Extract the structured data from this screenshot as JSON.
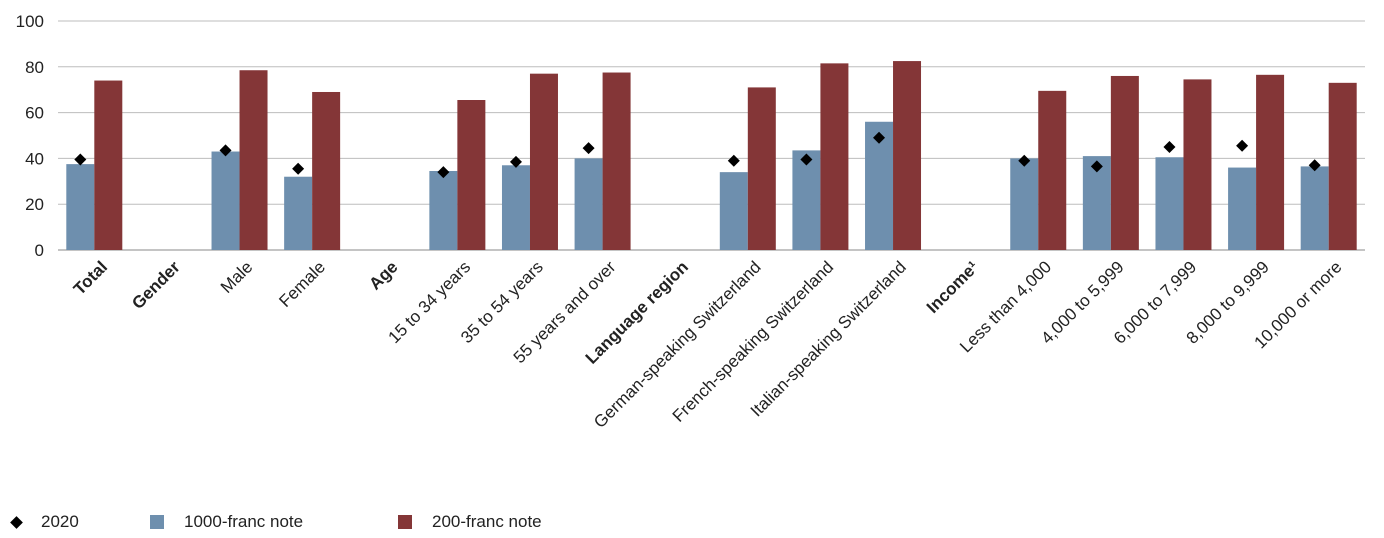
{
  "chart_data": {
    "type": "bar",
    "yticks": [
      "0",
      "20",
      "40",
      "60",
      "80",
      "100"
    ],
    "ylim": [
      0,
      100
    ],
    "grid": true,
    "legend_position": "bottom-left",
    "categories": [
      {
        "label": "Total",
        "bold": true,
        "note": 37.5,
        "note200": 74,
        "y2020": 39.5
      },
      {
        "label": "Gender",
        "bold": true,
        "note": null,
        "note200": null,
        "y2020": null
      },
      {
        "label": "Male",
        "bold": false,
        "note": 43,
        "note200": 78.5,
        "y2020": 43.5
      },
      {
        "label": "Female",
        "bold": false,
        "note": 32,
        "note200": 69,
        "y2020": 35.5
      },
      {
        "label": "Age",
        "bold": true,
        "note": null,
        "note200": null,
        "y2020": null
      },
      {
        "label": "15 to 34 years",
        "bold": false,
        "note": 34.5,
        "note200": 65.5,
        "y2020": 34
      },
      {
        "label": "35 to 54 years",
        "bold": false,
        "note": 37,
        "note200": 77,
        "y2020": 38.5
      },
      {
        "label": "55 years and over",
        "bold": false,
        "note": 40,
        "note200": 77.5,
        "y2020": 44.5
      },
      {
        "label": "Language region",
        "bold": true,
        "note": null,
        "note200": null,
        "y2020": null
      },
      {
        "label": "German-speaking Switzerland",
        "bold": false,
        "note": 34,
        "note200": 71,
        "y2020": 39
      },
      {
        "label": "French-speaking Switzerland",
        "bold": false,
        "note": 43.5,
        "note200": 81.5,
        "y2020": 39.5
      },
      {
        "label": "Italian-speaking Switzerland",
        "bold": false,
        "note": 56,
        "note200": 82.5,
        "y2020": 49
      },
      {
        "label": "Income¹",
        "bold": true,
        "note": null,
        "note200": null,
        "y2020": null
      },
      {
        "label": "Less than 4,000",
        "bold": false,
        "note": 40,
        "note200": 69.5,
        "y2020": 39
      },
      {
        "label": "4,000 to 5,999",
        "bold": false,
        "note": 41,
        "note200": 76,
        "y2020": 36.5
      },
      {
        "label": "6,000 to 7,999",
        "bold": false,
        "note": 40.5,
        "note200": 74.5,
        "y2020": 45
      },
      {
        "label": "8,000 to 9,999",
        "bold": false,
        "note": 36,
        "note200": 76.5,
        "y2020": 45.5
      },
      {
        "label": "10,000 or more",
        "bold": false,
        "note": 36.5,
        "note200": 73,
        "y2020": 37
      }
    ],
    "series": [
      {
        "name": "1000-franc note",
        "key": "note",
        "color": "#6e8fae"
      },
      {
        "name": "200-franc note",
        "key": "note200",
        "color": "#843637"
      },
      {
        "name": "2020",
        "key": "y2020",
        "color": "#000000"
      }
    ]
  },
  "legend": {
    "marker_label": "2020",
    "series1_label": "1000-franc note",
    "series2_label": "200-franc note"
  }
}
